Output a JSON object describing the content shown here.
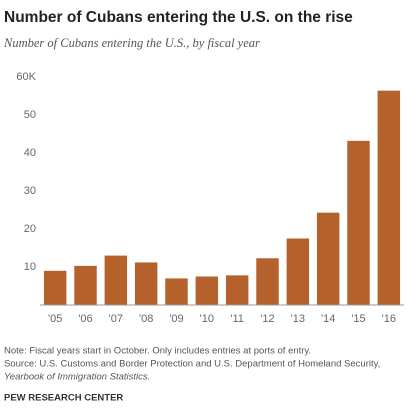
{
  "chart_data": {
    "type": "bar",
    "title": "Number of Cubans entering the U.S. on the rise",
    "subtitle": "Number of Cubans entering the U.S., by fiscal year",
    "categories": [
      "'05",
      "'06",
      "'07",
      "'08",
      "'09",
      "'10",
      "'11",
      "'12",
      "'13",
      "'14",
      "'15",
      "'16"
    ],
    "values": [
      9,
      10.3,
      13,
      11.2,
      7,
      7.5,
      7.8,
      12.3,
      17.5,
      24.3,
      43.2,
      56.4
    ],
    "color": "#b5612b",
    "ylim": [
      0,
      60
    ],
    "yticks": [
      10,
      20,
      30,
      40,
      50,
      {
        "value": 60,
        "label": "60K"
      }
    ],
    "grid": false,
    "note": "Note: Fiscal years start in October. Only includes entries at ports of entry.",
    "source": "Source: U.S. Customs and Border Protection and U.S. Department of Homeland Security,",
    "source_publication": "Yearbook of Immigration Statistics.",
    "credit": "PEW RESEARCH CENTER"
  }
}
